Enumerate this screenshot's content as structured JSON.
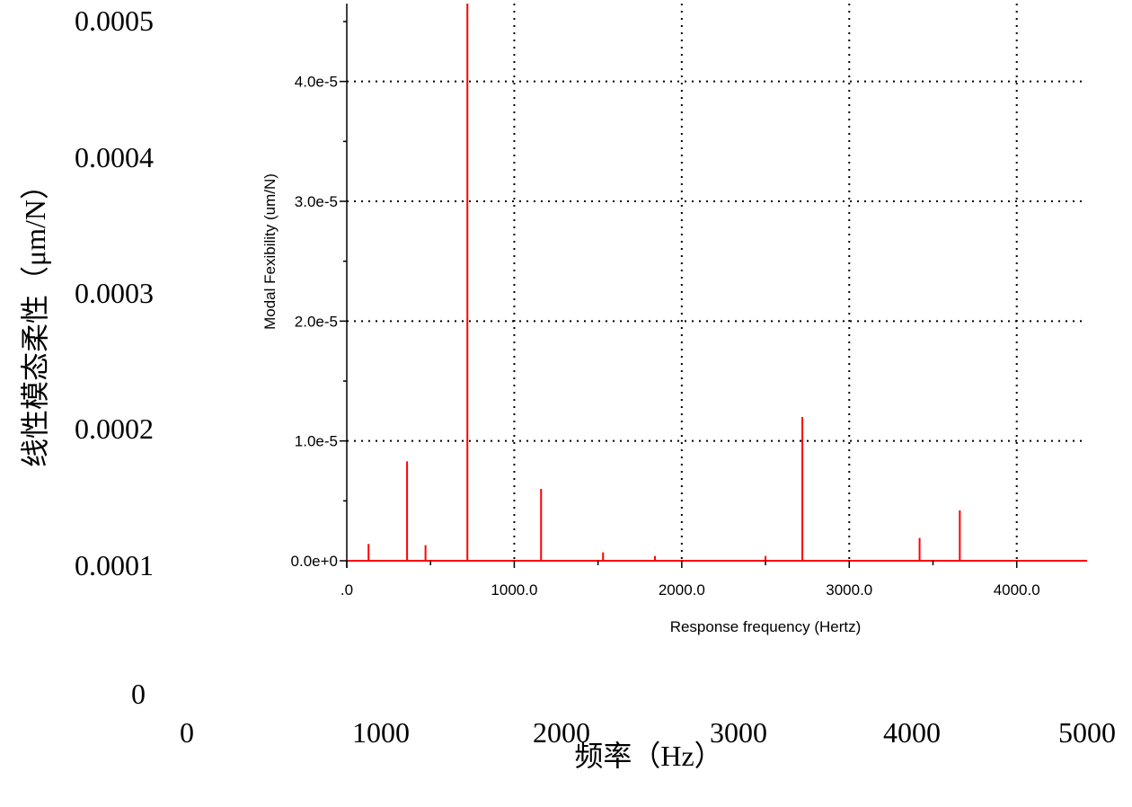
{
  "outer_chart": {
    "ylabel": "线性模态柔性（μm/N）",
    "xlabel": "频率（Hz）",
    "y_ticks": [
      "0.0005",
      "0.0004",
      "0.0003",
      "0.0002",
      "0.0001",
      "0"
    ],
    "x_ticks": [
      "0",
      "1000",
      "2000",
      "3000",
      "4000",
      "5000"
    ]
  },
  "chart_data": {
    "type": "bar",
    "title": "",
    "xlabel": "Response frequency (Hertz)",
    "ylabel": "Modal Fexibility (um/N)",
    "x_tick_labels": [
      ".0",
      "1000.0",
      "2000.0",
      "3000.0",
      "4000.0"
    ],
    "x_ticks": [
      0,
      1000,
      2000,
      3000,
      4000
    ],
    "y_tick_labels": [
      "0.0e+0",
      "1.0e-5",
      "2.0e-5",
      "3.0e-5",
      "4.0e-5"
    ],
    "y_ticks": [
      0,
      1e-05,
      2e-05,
      3e-05,
      4e-05
    ],
    "xlim": [
      0,
      4420
    ],
    "ylim": [
      0,
      4.65e-05
    ],
    "grid": true,
    "color": "#ff0000",
    "series": [
      {
        "x": [
          130,
          360,
          470,
          720,
          1160,
          1530,
          1840,
          2500,
          2720,
          3420,
          3660
        ],
        "values": [
          1.4e-06,
          8.3e-06,
          1.3e-06,
          4.65e-05,
          6e-06,
          7e-07,
          4e-07,
          4e-07,
          1.2e-05,
          1.9e-06,
          4.2e-06
        ]
      }
    ]
  }
}
